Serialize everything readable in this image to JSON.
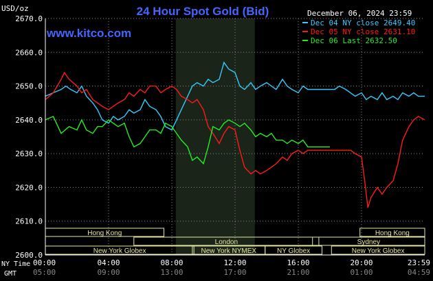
{
  "chart_data": {
    "type": "line",
    "title": "24 Hour Spot Gold (Bid)",
    "unit_label": "USD/oz",
    "site_label": "www.kitco.com",
    "date_label": "December 06, 2024 23:59",
    "ylim": [
      2600,
      2670
    ],
    "y_ticks": [
      "2670.0",
      "2660.0",
      "2650.0",
      "2640.0",
      "2630.0",
      "2620.0",
      "2610.0",
      "2600.0"
    ],
    "y_tick_values": [
      2670,
      2660,
      2650,
      2640,
      2630,
      2620,
      2610,
      2600
    ],
    "xlim": [
      0,
      24
    ],
    "x_ticks_ny": [
      "00:00",
      "04:00",
      "08:00",
      "12:00",
      "16:00",
      "20:00",
      "23:59"
    ],
    "x_ticks_gmt": [
      "05:00",
      "09:00",
      "13:00",
      "17:00",
      "21:00",
      "01:00",
      "04:59"
    ],
    "x_tick_hours": [
      0,
      4,
      8,
      12,
      16,
      20,
      24
    ],
    "ny_time_label": "NY Time",
    "gmt_label": "GMT",
    "grid": true,
    "legend_position": "top-right",
    "colors": {
      "background": "#000000",
      "grid": "#8a8a8a",
      "axis": "#ffffff",
      "title": "#4466ff",
      "site": "#4466ff",
      "highlight": "#1a2419",
      "session_bar": "#e7e7a3"
    },
    "highlight_hours": [
      8.25,
      13.25
    ],
    "series": [
      {
        "name": "Dec 04 NY close 2649.40",
        "color": "#33ccff",
        "points": [
          [
            0,
            2647
          ],
          [
            0.5,
            2648
          ],
          [
            1,
            2649
          ],
          [
            1.3,
            2650
          ],
          [
            1.6,
            2649
          ],
          [
            2,
            2648
          ],
          [
            2.3,
            2650
          ],
          [
            2.6,
            2647
          ],
          [
            3,
            2645
          ],
          [
            3.3,
            2643
          ],
          [
            3.6,
            2640
          ],
          [
            4,
            2639
          ],
          [
            4.3,
            2641
          ],
          [
            4.6,
            2640
          ],
          [
            5,
            2641
          ],
          [
            5.3,
            2643
          ],
          [
            5.6,
            2642
          ],
          [
            6,
            2643
          ],
          [
            6.3,
            2646
          ],
          [
            6.6,
            2644
          ],
          [
            7,
            2643
          ],
          [
            7.3,
            2641
          ],
          [
            7.6,
            2638
          ],
          [
            8,
            2637
          ],
          [
            8.3,
            2640
          ],
          [
            8.6,
            2643
          ],
          [
            9,
            2647
          ],
          [
            9.3,
            2650
          ],
          [
            9.6,
            2651
          ],
          [
            10,
            2650
          ],
          [
            10.3,
            2652
          ],
          [
            10.6,
            2651
          ],
          [
            11,
            2652
          ],
          [
            11.3,
            2657
          ],
          [
            11.6,
            2655
          ],
          [
            12,
            2654
          ],
          [
            12.3,
            2650
          ],
          [
            12.6,
            2649
          ],
          [
            13,
            2651
          ],
          [
            13.3,
            2649
          ],
          [
            13.6,
            2650
          ],
          [
            14,
            2651
          ],
          [
            14.3,
            2650
          ],
          [
            14.6,
            2649
          ],
          [
            15,
            2652
          ],
          [
            15.3,
            2650
          ],
          [
            15.6,
            2649
          ],
          [
            16,
            2648
          ],
          [
            16.3,
            2650
          ],
          [
            16.6,
            2649
          ],
          [
            17,
            2649
          ],
          [
            17.6,
            2649
          ],
          [
            18,
            2649
          ],
          [
            18.3,
            2649
          ],
          [
            18.6,
            2650
          ],
          [
            19,
            2649
          ],
          [
            19.3,
            2648
          ],
          [
            19.6,
            2647
          ],
          [
            20,
            2648
          ],
          [
            20.3,
            2646
          ],
          [
            20.6,
            2647
          ],
          [
            21,
            2646
          ],
          [
            21.3,
            2648
          ],
          [
            21.6,
            2646
          ],
          [
            22,
            2647
          ],
          [
            22.3,
            2646
          ],
          [
            22.6,
            2648
          ],
          [
            23,
            2647
          ],
          [
            23.3,
            2648
          ],
          [
            23.6,
            2647
          ],
          [
            24,
            2647
          ]
        ]
      },
      {
        "name": "Dec 05 NY close 2631.10",
        "color": "#ff1a1a",
        "points": [
          [
            0,
            2646
          ],
          [
            0.5,
            2648
          ],
          [
            1,
            2652
          ],
          [
            1.2,
            2654
          ],
          [
            1.5,
            2652
          ],
          [
            2,
            2650
          ],
          [
            2.3,
            2648
          ],
          [
            2.6,
            2649
          ],
          [
            3,
            2646
          ],
          [
            3.3,
            2645
          ],
          [
            3.6,
            2644
          ],
          [
            4,
            2643
          ],
          [
            4.3,
            2644
          ],
          [
            4.6,
            2645
          ],
          [
            5,
            2646
          ],
          [
            5.3,
            2648
          ],
          [
            5.6,
            2647
          ],
          [
            6,
            2649
          ],
          [
            6.3,
            2648
          ],
          [
            6.6,
            2650
          ],
          [
            7,
            2650
          ],
          [
            7.3,
            2648
          ],
          [
            7.6,
            2649
          ],
          [
            8,
            2650
          ],
          [
            8.3,
            2649
          ],
          [
            8.6,
            2647
          ],
          [
            9,
            2646
          ],
          [
            9.3,
            2645
          ],
          [
            9.6,
            2646
          ],
          [
            10,
            2643
          ],
          [
            10.3,
            2638
          ],
          [
            10.6,
            2636
          ],
          [
            11,
            2633
          ],
          [
            11.3,
            2636
          ],
          [
            11.6,
            2638
          ],
          [
            12,
            2637
          ],
          [
            12.3,
            2631
          ],
          [
            12.6,
            2626
          ],
          [
            13,
            2624
          ],
          [
            13.3,
            2625
          ],
          [
            13.6,
            2624
          ],
          [
            14,
            2625
          ],
          [
            14.3,
            2626
          ],
          [
            14.6,
            2627
          ],
          [
            15,
            2629
          ],
          [
            15.3,
            2628
          ],
          [
            15.6,
            2630
          ],
          [
            16,
            2631
          ],
          [
            16.3,
            2630
          ],
          [
            16.6,
            2631
          ],
          [
            17,
            2631
          ],
          [
            17.6,
            2631
          ],
          [
            18,
            2631
          ],
          [
            18.6,
            2631
          ],
          [
            19,
            2631
          ],
          [
            19.3,
            2631
          ],
          [
            19.6,
            2630
          ],
          [
            20,
            2629
          ],
          [
            20.2,
            2622
          ],
          [
            20.4,
            2614
          ],
          [
            20.6,
            2617
          ],
          [
            21,
            2620
          ],
          [
            21.3,
            2618
          ],
          [
            21.6,
            2620
          ],
          [
            22,
            2622
          ],
          [
            22.3,
            2627
          ],
          [
            22.6,
            2634
          ],
          [
            23,
            2638
          ],
          [
            23.3,
            2640
          ],
          [
            23.6,
            2641
          ],
          [
            24,
            2640
          ]
        ]
      },
      {
        "name": "Dec 06 Last 2632.50",
        "color": "#22ee22",
        "points": [
          [
            0,
            2640
          ],
          [
            0.5,
            2641
          ],
          [
            1,
            2636
          ],
          [
            1.5,
            2638
          ],
          [
            2,
            2637
          ],
          [
            2.3,
            2640
          ],
          [
            2.6,
            2637
          ],
          [
            3,
            2636
          ],
          [
            3.3,
            2638
          ],
          [
            3.6,
            2638
          ],
          [
            4,
            2640
          ],
          [
            4.3,
            2639
          ],
          [
            4.6,
            2638
          ],
          [
            5,
            2639
          ],
          [
            5.3,
            2635
          ],
          [
            5.6,
            2632
          ],
          [
            6,
            2633
          ],
          [
            6.3,
            2635
          ],
          [
            6.6,
            2637
          ],
          [
            7,
            2637
          ],
          [
            7.3,
            2636
          ],
          [
            7.6,
            2639
          ],
          [
            8,
            2638
          ],
          [
            8.3,
            2636
          ],
          [
            8.6,
            2634
          ],
          [
            9,
            2632
          ],
          [
            9.3,
            2628
          ],
          [
            9.6,
            2629
          ],
          [
            10,
            2627
          ],
          [
            10.3,
            2632
          ],
          [
            10.6,
            2638
          ],
          [
            11,
            2637
          ],
          [
            11.3,
            2639
          ],
          [
            11.6,
            2640
          ],
          [
            12,
            2639
          ],
          [
            12.3,
            2638
          ],
          [
            12.6,
            2639
          ],
          [
            13,
            2637
          ],
          [
            13.3,
            2635
          ],
          [
            13.6,
            2636
          ],
          [
            14,
            2635
          ],
          [
            14.3,
            2636
          ],
          [
            14.6,
            2634
          ],
          [
            15,
            2634
          ],
          [
            15.3,
            2633
          ],
          [
            15.6,
            2634
          ],
          [
            16,
            2633
          ],
          [
            16.3,
            2634
          ],
          [
            16.6,
            2632
          ],
          [
            17,
            2632
          ],
          [
            17.6,
            2632
          ],
          [
            18,
            2632
          ]
        ]
      }
    ],
    "sessions": [
      {
        "label": "Hong Kong",
        "start": 0,
        "end": 7.5,
        "row": 0
      },
      {
        "label": "London",
        "start": 5.6,
        "end": 17.3,
        "row": 1
      },
      {
        "label": "New York Globex",
        "start": 0,
        "end": 9.4,
        "row": 2
      },
      {
        "label": "New York NYMEX",
        "start": 9.3,
        "end": 13.9,
        "row": 2
      },
      {
        "label": "NY Globex",
        "start": 13.9,
        "end": 17.5,
        "row": 2
      },
      {
        "label": "Hong Kong",
        "start": 19.9,
        "end": 24,
        "row": 0
      },
      {
        "label": "Sydney",
        "start": 16.9,
        "end": 24,
        "row": 1
      },
      {
        "label": "New York Globex",
        "start": 18.1,
        "end": 24,
        "row": 2
      }
    ]
  }
}
